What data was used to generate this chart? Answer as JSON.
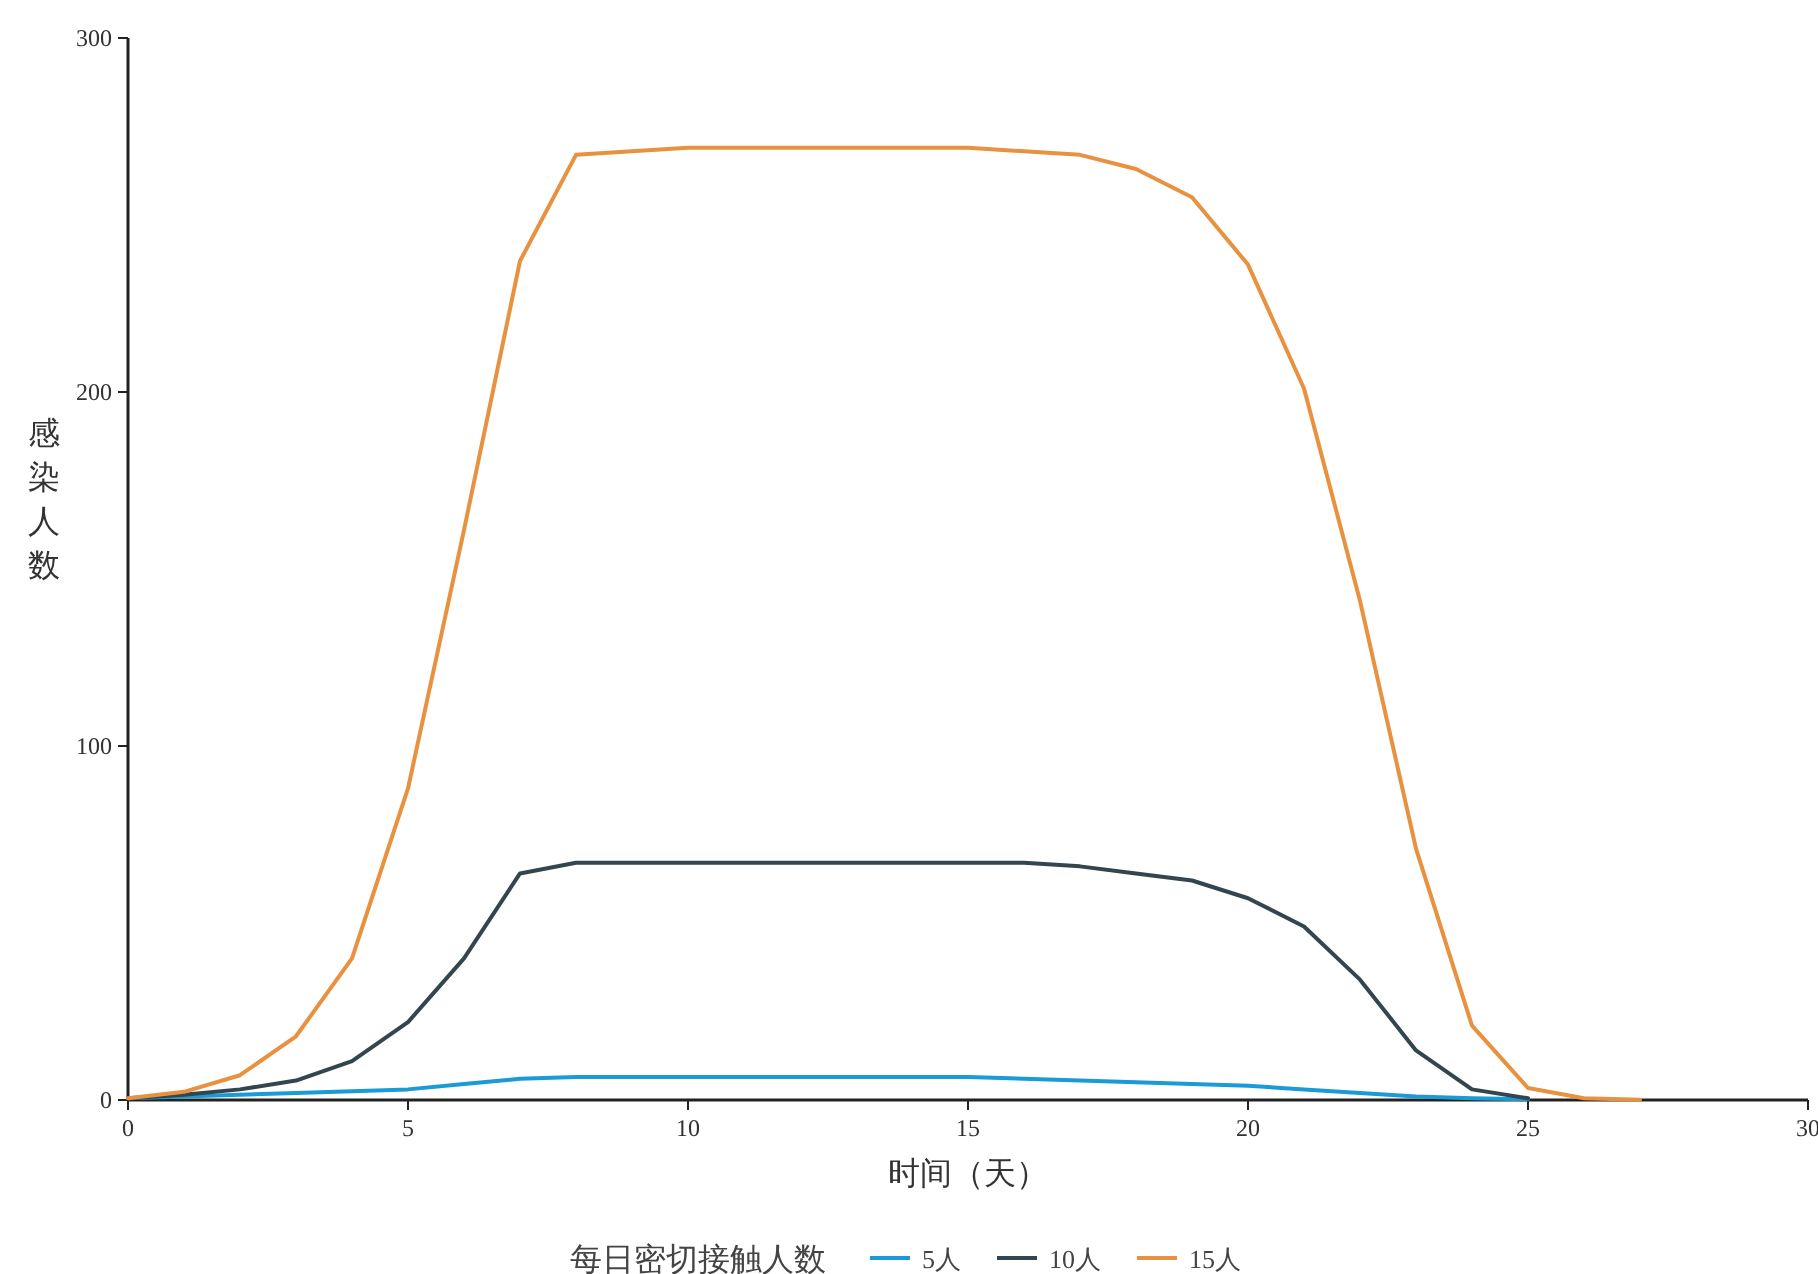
{
  "chart_data": {
    "type": "line",
    "xlabel": "时间（天）",
    "ylabel": "感染人数",
    "legend_title": "每日密切接触人数",
    "legend": "bottom",
    "xlim": [
      0,
      30
    ],
    "ylim": [
      0,
      300
    ],
    "xticks": [
      0,
      5,
      10,
      15,
      20,
      25,
      30
    ],
    "yticks": [
      0,
      100,
      200,
      300
    ],
    "series": [
      {
        "name": "5人",
        "color": "#1a9bd7",
        "x": [
          0,
          1,
          2,
          3,
          4,
          5,
          6,
          7,
          8,
          9,
          10,
          11,
          12,
          13,
          14,
          15,
          16,
          17,
          18,
          19,
          20,
          21,
          22,
          23,
          24,
          25
        ],
        "values": [
          0.5,
          1,
          1.5,
          2,
          2.5,
          3,
          4.5,
          6,
          6.5,
          6.5,
          6.5,
          6.5,
          6.5,
          6.5,
          6.5,
          6.5,
          6,
          5.5,
          5,
          4.5,
          4,
          3,
          2,
          1,
          0.5,
          0.2
        ]
      },
      {
        "name": "10人",
        "color": "#33454f",
        "x": [
          0,
          1,
          2,
          3,
          4,
          5,
          6,
          7,
          8,
          9,
          10,
          11,
          12,
          13,
          14,
          15,
          16,
          17,
          18,
          19,
          20,
          21,
          22,
          23,
          24,
          25
        ],
        "values": [
          0.5,
          1.5,
          3,
          5.5,
          11,
          22,
          40,
          64,
          67,
          67,
          67,
          67,
          67,
          67,
          67,
          67,
          67,
          66,
          64,
          62,
          57,
          49,
          34,
          14,
          3,
          0.5
        ]
      },
      {
        "name": "15人",
        "color": "#e8913f",
        "x": [
          0,
          1,
          2,
          3,
          4,
          5,
          6,
          7,
          8,
          9,
          10,
          11,
          12,
          13,
          14,
          15,
          16,
          17,
          18,
          19,
          20,
          21,
          22,
          23,
          24,
          25,
          26,
          27
        ],
        "values": [
          0.5,
          2.3,
          7,
          18,
          40,
          88,
          161,
          237,
          267,
          268,
          269,
          269,
          269,
          269,
          269,
          269,
          268,
          267,
          263,
          255,
          236,
          201,
          141,
          71,
          21,
          3.4,
          0.5,
          0.1
        ]
      }
    ]
  }
}
